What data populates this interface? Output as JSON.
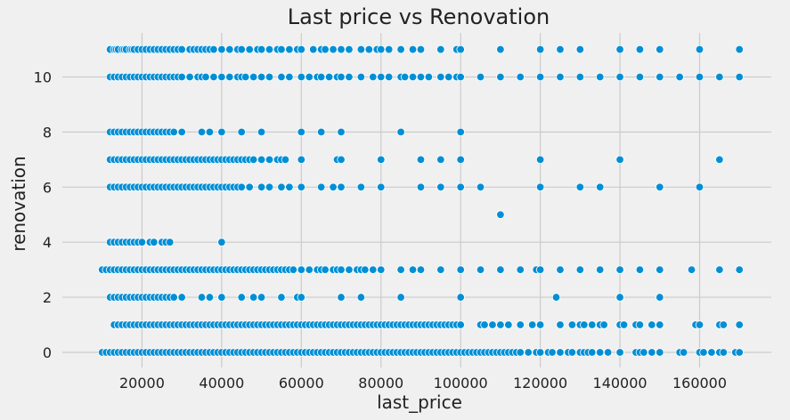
{
  "chart_data": {
    "type": "scatter",
    "title": "Last price vs Renovation",
    "xlabel": "last_price",
    "ylabel": "renovation",
    "xlim": [
      0,
      178000
    ],
    "ylim": [
      -0.55,
      11.6
    ],
    "xticks": [
      20000,
      40000,
      60000,
      80000,
      100000,
      120000,
      140000,
      160000
    ],
    "yticks": [
      0,
      2,
      4,
      6,
      8,
      10
    ],
    "grid": true,
    "style": "fivethirtyeight",
    "point_color": "#008fd5",
    "background_color": "#f0f0f0",
    "grid_color": "#cbcbcb",
    "series": [
      {
        "y": 11,
        "x": [
          12000,
          13000,
          13500,
          14000,
          15000,
          15500,
          16000,
          17000,
          17500,
          18000,
          19000,
          20000,
          21000,
          22000,
          23000,
          24000,
          25000,
          26000,
          27000,
          28000,
          29000,
          30000,
          32000,
          33000,
          34000,
          35000,
          36000,
          37000,
          38000,
          40000,
          42000,
          44000,
          45000,
          47000,
          49000,
          50000,
          52000,
          54000,
          55000,
          57000,
          59000,
          60000,
          63000,
          65000,
          66000,
          68000,
          70000,
          72000,
          75000,
          77000,
          79000,
          80000,
          82000,
          85000,
          88000,
          90000,
          95000,
          99000,
          100000,
          110000,
          120000,
          125000,
          130000,
          140000,
          145000,
          150000,
          160000,
          170000
        ]
      },
      {
        "y": 10,
        "x": [
          12000,
          13000,
          14000,
          15000,
          16000,
          17000,
          18000,
          19000,
          20000,
          21000,
          22000,
          23000,
          24000,
          25000,
          26000,
          27000,
          28000,
          29000,
          30000,
          32000,
          34000,
          35000,
          36000,
          38000,
          40000,
          42000,
          44000,
          45000,
          46000,
          48000,
          50000,
          52000,
          55000,
          57000,
          60000,
          62000,
          64000,
          65000,
          67000,
          69000,
          70000,
          72000,
          75000,
          78000,
          80000,
          82000,
          85000,
          86000,
          88000,
          90000,
          92000,
          95000,
          97000,
          99000,
          100000,
          105000,
          110000,
          115000,
          120000,
          125000,
          130000,
          135000,
          140000,
          145000,
          150000,
          155000,
          160000,
          165000,
          170000
        ]
      },
      {
        "y": 8,
        "x": [
          12000,
          13000,
          14000,
          15000,
          16000,
          17000,
          18000,
          19000,
          20000,
          21000,
          22000,
          23000,
          24000,
          25000,
          26000,
          27000,
          28000,
          30000,
          35000,
          37000,
          40000,
          45000,
          50000,
          60000,
          65000,
          70000,
          85000,
          100000
        ]
      },
      {
        "y": 7,
        "x": [
          12000,
          13000,
          14000,
          15000,
          16000,
          17000,
          18000,
          19000,
          20000,
          21000,
          22000,
          23000,
          24000,
          25000,
          26000,
          27000,
          28000,
          29000,
          30000,
          31000,
          32000,
          33000,
          34000,
          35000,
          36000,
          37000,
          38000,
          39000,
          40000,
          41000,
          42000,
          43000,
          44000,
          45000,
          46000,
          47000,
          48000,
          50000,
          52000,
          54000,
          55000,
          56000,
          60000,
          69000,
          70000,
          80000,
          90000,
          95000,
          100000,
          120000,
          140000,
          165000
        ]
      },
      {
        "y": 6,
        "x": [
          12000,
          13000,
          14000,
          15000,
          16000,
          17000,
          18000,
          19000,
          20000,
          21000,
          22000,
          23000,
          24000,
          25000,
          26000,
          27000,
          28000,
          29000,
          30000,
          31000,
          32000,
          33000,
          34000,
          35000,
          36000,
          37000,
          38000,
          39000,
          40000,
          41000,
          42000,
          43000,
          44000,
          45000,
          47000,
          50000,
          52000,
          55000,
          57000,
          60000,
          65000,
          68000,
          70000,
          75000,
          80000,
          90000,
          95000,
          100000,
          105000,
          120000,
          130000,
          135000,
          150000,
          160000
        ]
      },
      {
        "y": 5,
        "x": [
          110000
        ]
      },
      {
        "y": 4,
        "x": [
          12000,
          13000,
          14000,
          15000,
          16000,
          17000,
          18000,
          19000,
          20000,
          22000,
          23000,
          25000,
          26000,
          27000,
          40000
        ]
      },
      {
        "y": 3,
        "x": [
          10000,
          11000,
          12000,
          13000,
          14000,
          15000,
          16000,
          17000,
          18000,
          19000,
          20000,
          21000,
          22000,
          23000,
          24000,
          25000,
          26000,
          27000,
          28000,
          29000,
          30000,
          31000,
          32000,
          33000,
          34000,
          35000,
          36000,
          37000,
          38000,
          39000,
          40000,
          41000,
          42000,
          43000,
          44000,
          45000,
          46000,
          47000,
          48000,
          49000,
          50000,
          51000,
          52000,
          53000,
          54000,
          55000,
          56000,
          57000,
          58000,
          60000,
          62000,
          64000,
          65000,
          66000,
          68000,
          69000,
          70000,
          72000,
          74000,
          75000,
          76000,
          78000,
          80000,
          85000,
          88000,
          90000,
          95000,
          100000,
          105000,
          110000,
          115000,
          119000,
          120000,
          125000,
          130000,
          135000,
          140000,
          145000,
          150000,
          158000,
          165000,
          170000
        ]
      },
      {
        "y": 2,
        "x": [
          12000,
          13000,
          14000,
          15000,
          16000,
          17000,
          18000,
          19000,
          20000,
          21000,
          22000,
          23000,
          24000,
          25000,
          26000,
          27000,
          28000,
          30000,
          35000,
          37000,
          40000,
          45000,
          48000,
          50000,
          55000,
          59000,
          60000,
          70000,
          75000,
          85000,
          100000,
          124000,
          140000,
          150000
        ]
      },
      {
        "y": 1,
        "x": [
          13000,
          14000,
          15000,
          16000,
          17000,
          18000,
          19000,
          20000,
          21000,
          22000,
          23000,
          24000,
          25000,
          26000,
          27000,
          28000,
          29000,
          30000,
          31000,
          32000,
          33000,
          34000,
          35000,
          36000,
          37000,
          38000,
          39000,
          40000,
          41000,
          42000,
          43000,
          44000,
          45000,
          46000,
          47000,
          48000,
          49000,
          50000,
          51000,
          52000,
          53000,
          54000,
          55000,
          56000,
          57000,
          58000,
          59000,
          60000,
          61000,
          62000,
          63000,
          64000,
          65000,
          66000,
          67000,
          68000,
          69000,
          70000,
          71000,
          72000,
          73000,
          74000,
          75000,
          76000,
          77000,
          78000,
          79000,
          80000,
          81000,
          82000,
          83000,
          84000,
          85000,
          86000,
          87000,
          88000,
          89000,
          90000,
          91000,
          92000,
          93000,
          94000,
          95000,
          96000,
          97000,
          98000,
          99000,
          100000,
          105000,
          106000,
          108000,
          110000,
          112000,
          115000,
          118000,
          120000,
          125000,
          128000,
          130000,
          131000,
          133000,
          135000,
          136000,
          140000,
          141000,
          144000,
          145000,
          148000,
          150000,
          159000,
          160000,
          165000,
          166000,
          170000
        ]
      },
      {
        "y": 0,
        "x": [
          10000,
          11000,
          12000,
          13000,
          14000,
          15000,
          16000,
          17000,
          18000,
          19000,
          20000,
          21000,
          22000,
          23000,
          24000,
          25000,
          26000,
          27000,
          28000,
          29000,
          30000,
          31000,
          32000,
          33000,
          34000,
          35000,
          36000,
          37000,
          38000,
          39000,
          40000,
          41000,
          42000,
          43000,
          44000,
          45000,
          46000,
          47000,
          48000,
          49000,
          50000,
          51000,
          52000,
          53000,
          54000,
          55000,
          56000,
          57000,
          58000,
          59000,
          60000,
          61000,
          62000,
          63000,
          64000,
          65000,
          66000,
          67000,
          68000,
          69000,
          70000,
          71000,
          72000,
          73000,
          74000,
          75000,
          76000,
          77000,
          78000,
          79000,
          80000,
          81000,
          82000,
          83000,
          84000,
          85000,
          86000,
          87000,
          88000,
          89000,
          90000,
          91000,
          92000,
          93000,
          94000,
          95000,
          96000,
          97000,
          98000,
          99000,
          100000,
          101000,
          102000,
          103000,
          104000,
          105000,
          106000,
          107000,
          108000,
          109000,
          110000,
          111000,
          112000,
          113000,
          114000,
          115000,
          117000,
          119000,
          120000,
          122000,
          123000,
          125000,
          127000,
          128000,
          130000,
          131000,
          132000,
          133000,
          135000,
          137000,
          140000,
          144000,
          145000,
          146000,
          148000,
          150000,
          155000,
          156000,
          160000,
          161000,
          163000,
          165000,
          166000,
          169000,
          170000
        ]
      }
    ]
  }
}
